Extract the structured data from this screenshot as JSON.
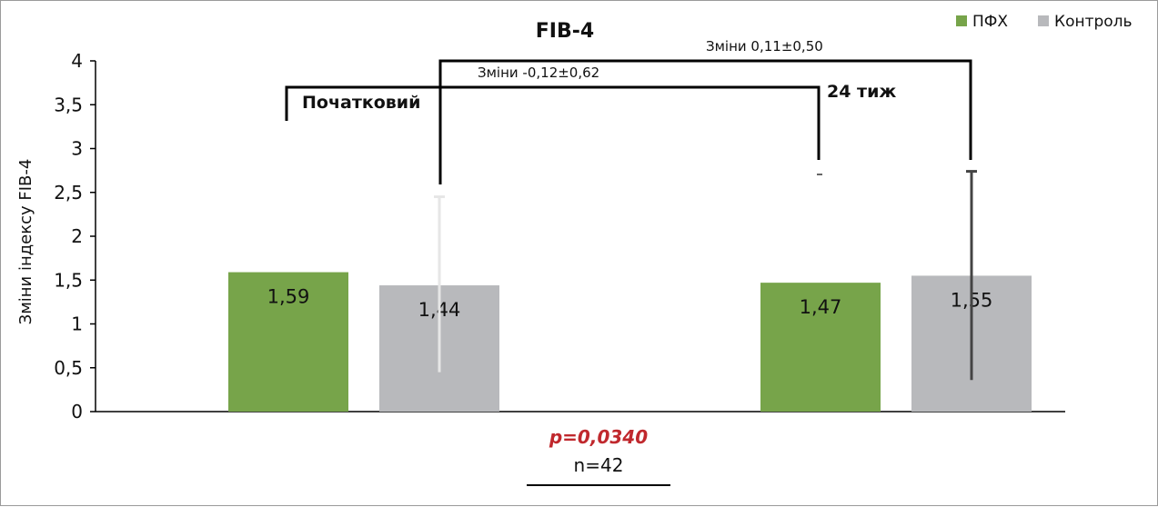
{
  "chart_data": {
    "type": "bar",
    "title": "FIB-4",
    "ylabel": "Зміни індексу FIB-4",
    "ylim": [
      0,
      4
    ],
    "yticks": [
      "0",
      "0,5",
      "1",
      "1,5",
      "2",
      "2,5",
      "3",
      "3,5",
      "4"
    ],
    "ytick_values": [
      0,
      0.5,
      1,
      1.5,
      2,
      2.5,
      3,
      3.5,
      4
    ],
    "groups": [
      "Початковий",
      "24 тиж"
    ],
    "series": [
      {
        "name": "ПФХ",
        "color": "#77a44a",
        "values": [
          1.59,
          1.47
        ],
        "labels": [
          "1,59",
          "1,47"
        ]
      },
      {
        "name": "Контроль",
        "color": "#b8b9bc",
        "values": [
          1.44,
          1.55
        ],
        "labels": [
          "1,44",
          "1,55"
        ]
      }
    ],
    "error_bars": [
      {
        "series": "Контроль",
        "group": "Початковий",
        "low": 0.45,
        "high": 2.45,
        "color": "#e6e6e6"
      },
      {
        "series": "Контроль",
        "group": "24 тиж",
        "low": 0.36,
        "high": 2.74,
        "color": "#444444"
      }
    ],
    "annotations": {
      "pfx_change": "Зміни  -0,12±0,62",
      "control_change": "Зміни  0,11±0,50",
      "p_value": "p=0,0340",
      "n": "n=42"
    },
    "legend": {
      "placement": "top-right"
    },
    "grid": false
  }
}
